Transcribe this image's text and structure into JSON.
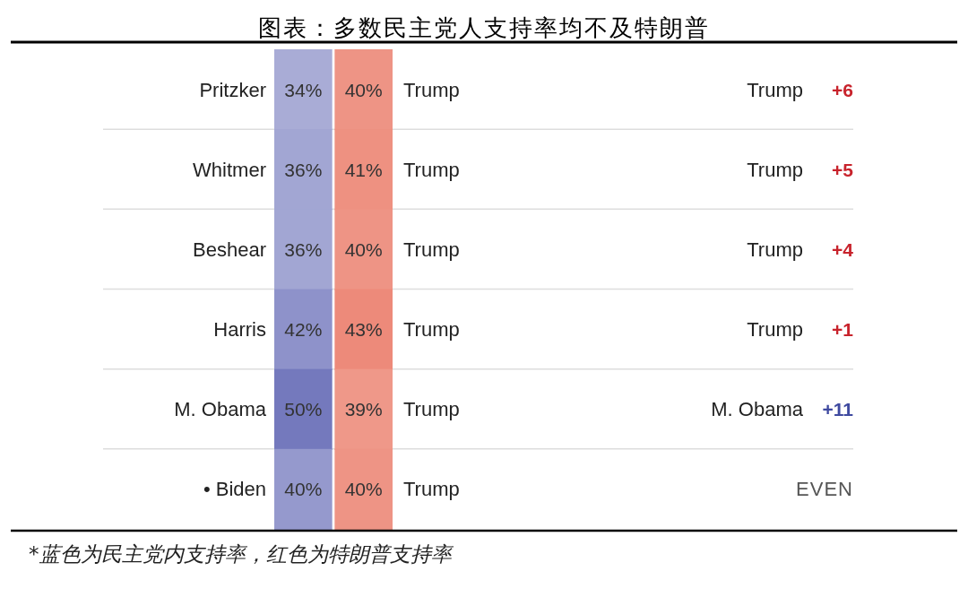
{
  "chart_data": {
    "type": "heatmap",
    "title": "图表：多数民主党人支持率均不及特朗普",
    "categories": [
      null,
      null
    ],
    "y_categories": [
      "Pritzker",
      "Whitmer",
      "Beshear",
      "Harris",
      "M. Obama",
      "• Biden"
    ],
    "y2_categories": [
      "Trump +6",
      "Trump +5",
      "Trump +4",
      "Trump +1",
      "M. Obama +11",
      "EVEN"
    ],
    "cells": [
      [
        34,
        40
      ],
      [
        36,
        41
      ],
      [
        36,
        40
      ],
      [
        42,
        43
      ],
      [
        50,
        39
      ],
      [
        40,
        40
      ]
    ],
    "cell_labels": [
      [
        "34%",
        "40%"
      ],
      [
        "36%",
        "41%"
      ],
      [
        "36%",
        "40%"
      ],
      [
        "42%",
        "43%"
      ],
      [
        "50%",
        "39%"
      ],
      [
        "40%",
        "40%"
      ]
    ],
    "colors": [
      "#7479bd",
      "#e9735f"
    ],
    "annotations": [
      "Trump",
      "Trump",
      "Trump",
      "Trump",
      "Trump",
      "Trump",
      "*蓝色为民主党内支持率，红色为特朗普支持率"
    ]
  }
}
